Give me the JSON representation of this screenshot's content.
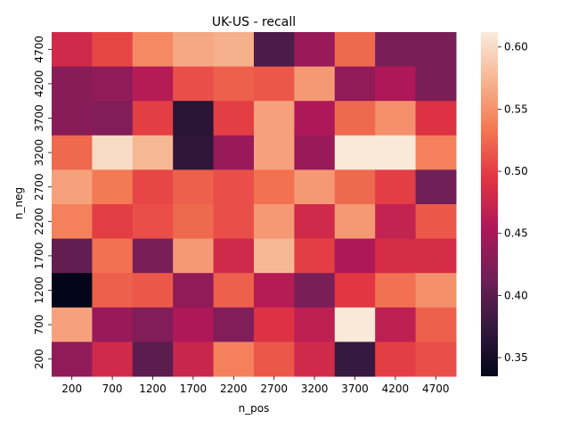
{
  "chart_data": {
    "type": "heatmap",
    "title": "UK-US - recall",
    "xlabel": "n_pos",
    "ylabel": "n_neg",
    "x_categories": [
      "200",
      "700",
      "1200",
      "1700",
      "2200",
      "2700",
      "3200",
      "3700",
      "4200",
      "4700"
    ],
    "y_categories_top_to_bottom": [
      "4700",
      "4200",
      "3700",
      "3200",
      "2700",
      "2200",
      "1700",
      "1200",
      "700",
      "200"
    ],
    "values_top_to_bottom": [
      [
        0.48,
        0.505,
        0.545,
        0.565,
        0.57,
        0.39,
        0.44,
        0.525,
        0.42,
        0.42
      ],
      [
        0.43,
        0.435,
        0.46,
        0.51,
        0.52,
        0.515,
        0.555,
        0.435,
        0.455,
        0.42
      ],
      [
        0.43,
        0.425,
        0.5,
        0.365,
        0.5,
        0.56,
        0.455,
        0.525,
        0.55,
        0.49
      ],
      [
        0.525,
        0.6,
        0.575,
        0.37,
        0.44,
        0.56,
        0.44,
        0.61,
        0.61,
        0.54
      ],
      [
        0.56,
        0.535,
        0.505,
        0.52,
        0.51,
        0.53,
        0.555,
        0.525,
        0.5,
        0.415
      ],
      [
        0.54,
        0.5,
        0.51,
        0.525,
        0.51,
        0.555,
        0.48,
        0.555,
        0.47,
        0.515
      ],
      [
        0.405,
        0.53,
        0.42,
        0.555,
        0.48,
        0.575,
        0.5,
        0.455,
        0.485,
        0.485
      ],
      [
        0.335,
        0.52,
        0.515,
        0.435,
        0.52,
        0.46,
        0.42,
        0.495,
        0.53,
        0.55
      ],
      [
        0.56,
        0.44,
        0.425,
        0.455,
        0.425,
        0.49,
        0.465,
        0.61,
        0.465,
        0.52
      ],
      [
        0.435,
        0.48,
        0.4,
        0.475,
        0.54,
        0.515,
        0.48,
        0.375,
        0.5,
        0.51
      ]
    ],
    "colorbar": {
      "min": 0.335,
      "max": 0.612,
      "ticks": [
        0.35,
        0.4,
        0.45,
        0.5,
        0.55,
        0.6
      ],
      "tick_labels": [
        "0.35",
        "0.40",
        "0.45",
        "0.50",
        "0.55",
        "0.60"
      ],
      "colormap": "rocket",
      "colormap_stops": [
        "#03051a",
        "#35193e",
        "#701f57",
        "#ad1759",
        "#e13342",
        "#f37651",
        "#f6b48f",
        "#faebdd"
      ]
    },
    "grid": false
  }
}
